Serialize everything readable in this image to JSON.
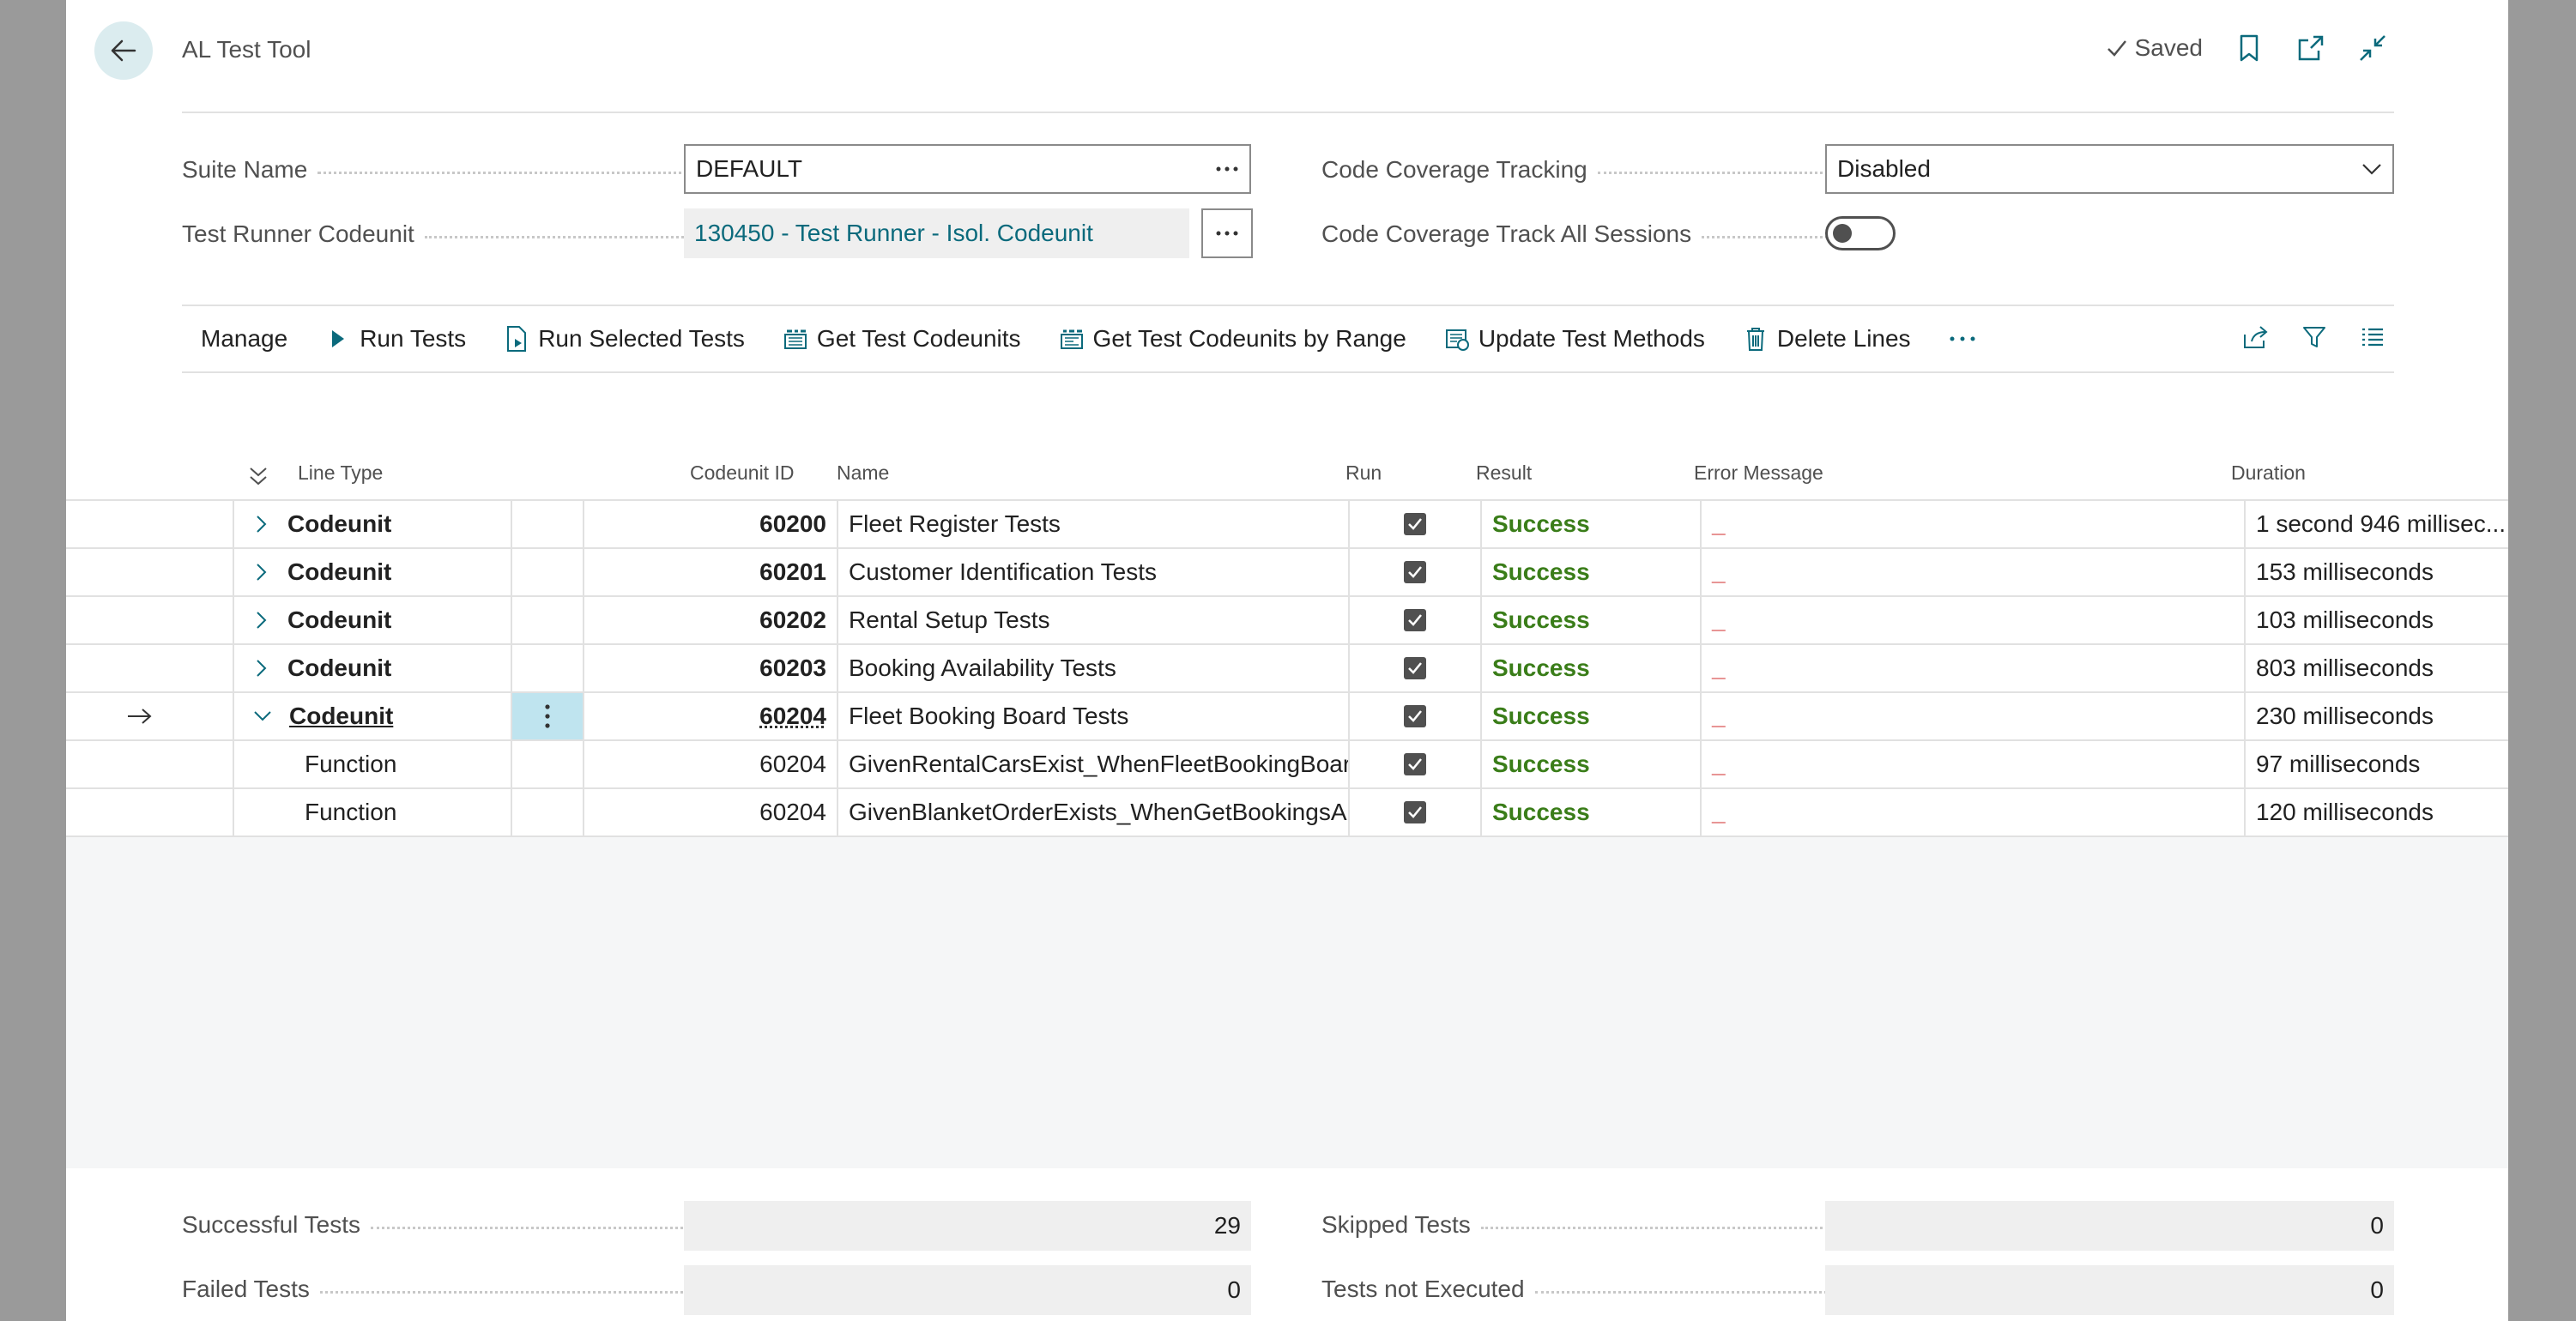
{
  "header": {
    "title": "AL Test Tool",
    "saved_label": "Saved"
  },
  "fields": {
    "suite_name": {
      "label": "Suite Name",
      "value": "DEFAULT"
    },
    "test_runner": {
      "label": "Test Runner Codeunit",
      "value": "130450 - Test Runner - Isol. Codeunit"
    },
    "coverage_tracking": {
      "label": "Code Coverage Tracking",
      "value": "Disabled"
    },
    "coverage_all_sessions": {
      "label": "Code Coverage Track All Sessions",
      "value": false
    }
  },
  "actions": {
    "manage": "Manage",
    "run_tests": "Run Tests",
    "run_selected": "Run Selected Tests",
    "get_codeunits": "Get Test Codeunits",
    "get_codeunits_range": "Get Test Codeunits by Range",
    "update_methods": "Update Test Methods",
    "delete_lines": "Delete Lines"
  },
  "grid": {
    "columns": {
      "line_type": "Line Type",
      "codeunit_id": "Codeunit ID",
      "name": "Name",
      "run": "Run",
      "result": "Result",
      "error": "Error Message",
      "duration": "Duration"
    },
    "rows": [
      {
        "line_type": "Codeunit",
        "codeunit_id": "60200",
        "name": "Fleet Register Tests",
        "run": true,
        "result": "Success",
        "error": "_",
        "duration": "1 second 946 millisec..."
      },
      {
        "line_type": "Codeunit",
        "codeunit_id": "60201",
        "name": "Customer Identification Tests",
        "run": true,
        "result": "Success",
        "error": "_",
        "duration": "153 milliseconds"
      },
      {
        "line_type": "Codeunit",
        "codeunit_id": "60202",
        "name": "Rental Setup Tests",
        "run": true,
        "result": "Success",
        "error": "_",
        "duration": "103 milliseconds"
      },
      {
        "line_type": "Codeunit",
        "codeunit_id": "60203",
        "name": "Booking Availability Tests",
        "run": true,
        "result": "Success",
        "error": "_",
        "duration": "803 milliseconds"
      },
      {
        "line_type": "Codeunit",
        "codeunit_id": "60204",
        "name": "Fleet Booking Board Tests",
        "run": true,
        "result": "Success",
        "error": "_",
        "duration": "230 milliseconds"
      },
      {
        "line_type": "Function",
        "codeunit_id": "60204",
        "name": "GivenRentalCarsExist_WhenFleetBookingBoar...",
        "run": true,
        "result": "Success",
        "error": "_",
        "duration": "97 milliseconds"
      },
      {
        "line_type": "Function",
        "codeunit_id": "60204",
        "name": "GivenBlanketOrderExists_WhenGetBookingsA...",
        "run": true,
        "result": "Success",
        "error": "_",
        "duration": "120 milliseconds"
      }
    ]
  },
  "summary": {
    "successful": {
      "label": "Successful Tests",
      "value": "29"
    },
    "failed": {
      "label": "Failed Tests",
      "value": "0"
    },
    "skipped": {
      "label": "Skipped Tests",
      "value": "0"
    },
    "not_executed": {
      "label": "Tests not Executed",
      "value": "0"
    }
  },
  "colors": {
    "accent": "#0b6a7c",
    "success": "#3a7d19",
    "error": "#d12b2b",
    "selection": "#bfe4ef"
  }
}
